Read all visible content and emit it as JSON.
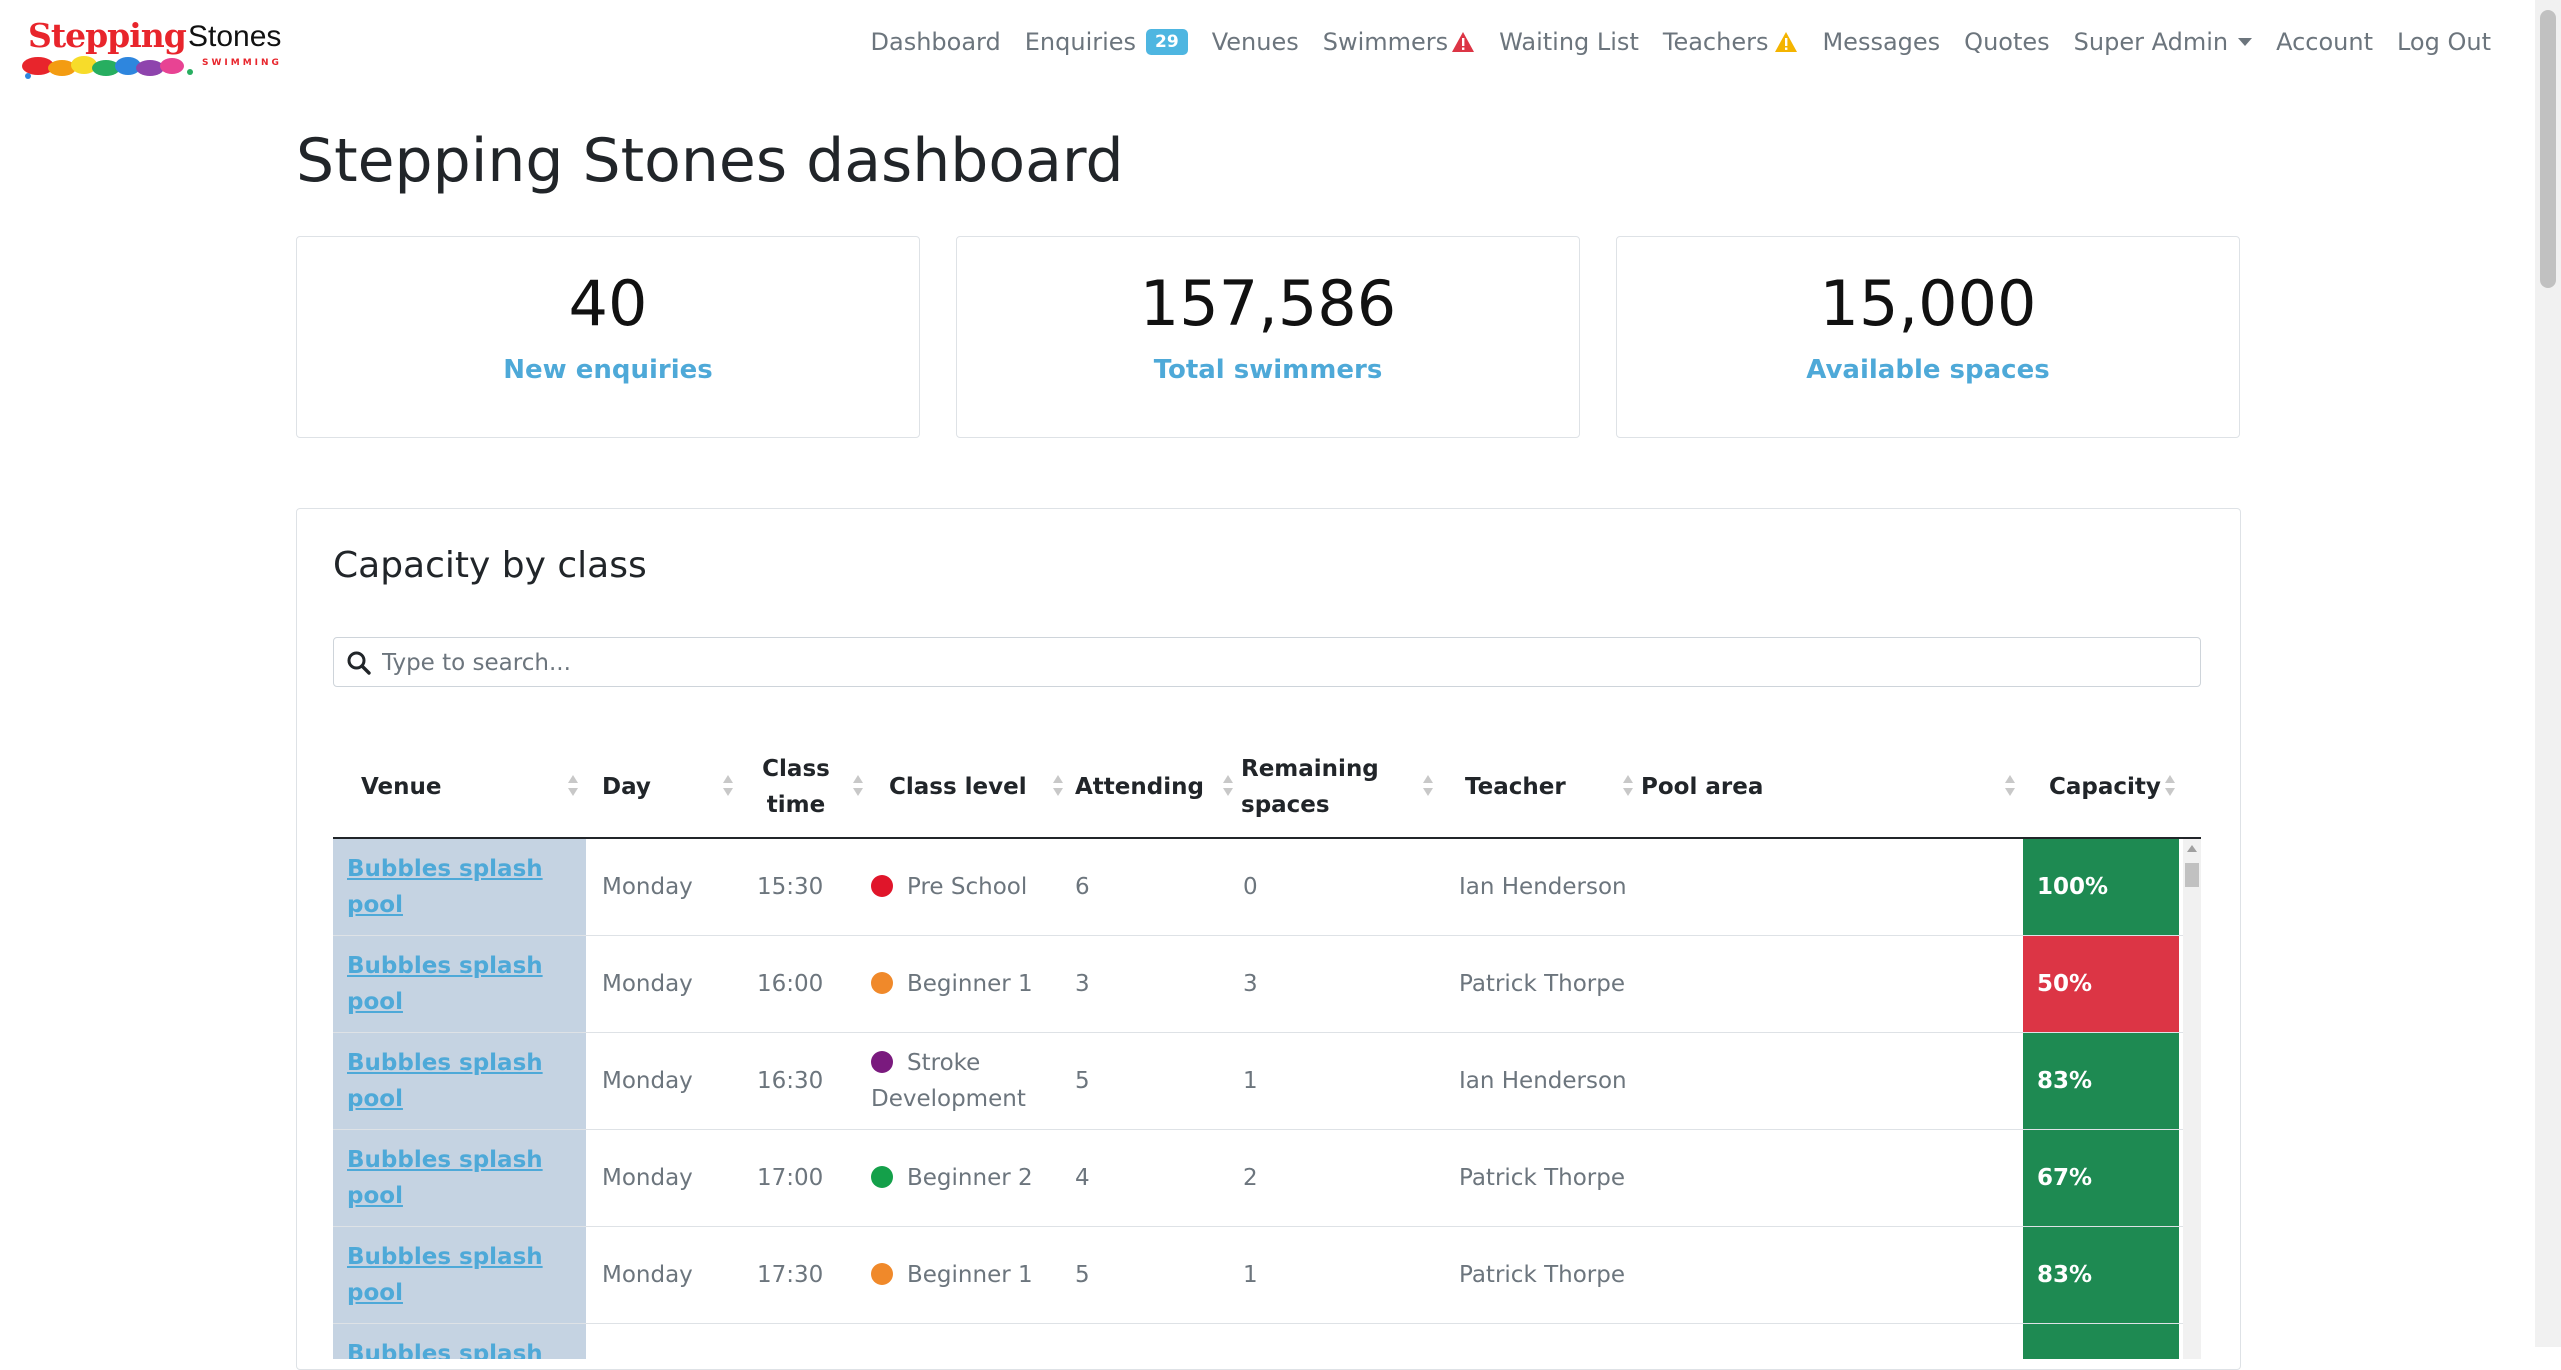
{
  "brand": {
    "name_part1": "Stepping",
    "name_part2": "Stones",
    "tagline": "SWIMMING"
  },
  "nav": {
    "items": [
      "Dashboard",
      "Enquiries",
      "Venues",
      "Swimmers",
      "Waiting List",
      "Teachers",
      "Messages",
      "Quotes",
      "Super Admin",
      "Account",
      "Log Out"
    ],
    "enquiries_badge": "29"
  },
  "page": {
    "title": "Stepping Stones dashboard"
  },
  "stats": [
    {
      "value": "40",
      "label": "New enquiries"
    },
    {
      "value": "157,586",
      "label": "Total swimmers"
    },
    {
      "value": "15,000",
      "label": "Available spaces"
    }
  ],
  "capacity": {
    "title": "Capacity by class",
    "search_placeholder": "Type to search...",
    "columns": [
      "Venue",
      "Day",
      "Class time",
      "Class level",
      "Attending",
      "Remaining spaces",
      "Teacher",
      "Pool area",
      "Capacity"
    ],
    "rows": [
      {
        "venue": "Bubbles splash pool",
        "day": "Monday",
        "time": "15:30",
        "level": "Pre School",
        "level_color": "#e0152a",
        "attending": "6",
        "remaining": "0",
        "teacher": "Ian Henderson",
        "pool_area": "",
        "capacity": "100%",
        "capacity_color": "#1e8a52"
      },
      {
        "venue": "Bubbles splash pool",
        "day": "Monday",
        "time": "16:00",
        "level": "Beginner 1",
        "level_color": "#f0892a",
        "attending": "3",
        "remaining": "3",
        "teacher": "Patrick Thorpe",
        "pool_area": "",
        "capacity": "50%",
        "capacity_color": "#dc3545"
      },
      {
        "venue": "Bubbles splash pool",
        "day": "Monday",
        "time": "16:30",
        "level": "Stroke Development",
        "level_color": "#7a1a7e",
        "attending": "5",
        "remaining": "1",
        "teacher": "Ian Henderson",
        "pool_area": "",
        "capacity": "83%",
        "capacity_color": "#1e8a52"
      },
      {
        "venue": "Bubbles splash pool",
        "day": "Monday",
        "time": "17:00",
        "level": "Beginner 2",
        "level_color": "#14a04a",
        "attending": "4",
        "remaining": "2",
        "teacher": "Patrick Thorpe",
        "pool_area": "",
        "capacity": "67%",
        "capacity_color": "#1e8a52"
      },
      {
        "venue": "Bubbles splash pool",
        "day": "Monday",
        "time": "17:30",
        "level": "Beginner 1",
        "level_color": "#f0892a",
        "attending": "5",
        "remaining": "1",
        "teacher": "Patrick Thorpe",
        "pool_area": "",
        "capacity": "83%",
        "capacity_color": "#1e8a52"
      },
      {
        "venue": "Bubbles splash pool",
        "day": "",
        "time": "",
        "level": "",
        "level_color": "",
        "attending": "",
        "remaining": "",
        "teacher": "",
        "pool_area": "",
        "capacity": "",
        "capacity_color": "#1e8a52"
      }
    ]
  },
  "icons": {
    "warning": "warning-triangle-icon",
    "search": "search-icon",
    "sort": "sort-icon"
  },
  "colors": {
    "link": "#4ea9d8",
    "venue_bg": "#c5d3e2",
    "warning_red": "#dc3545",
    "warning_yellow": "#f4b400"
  }
}
